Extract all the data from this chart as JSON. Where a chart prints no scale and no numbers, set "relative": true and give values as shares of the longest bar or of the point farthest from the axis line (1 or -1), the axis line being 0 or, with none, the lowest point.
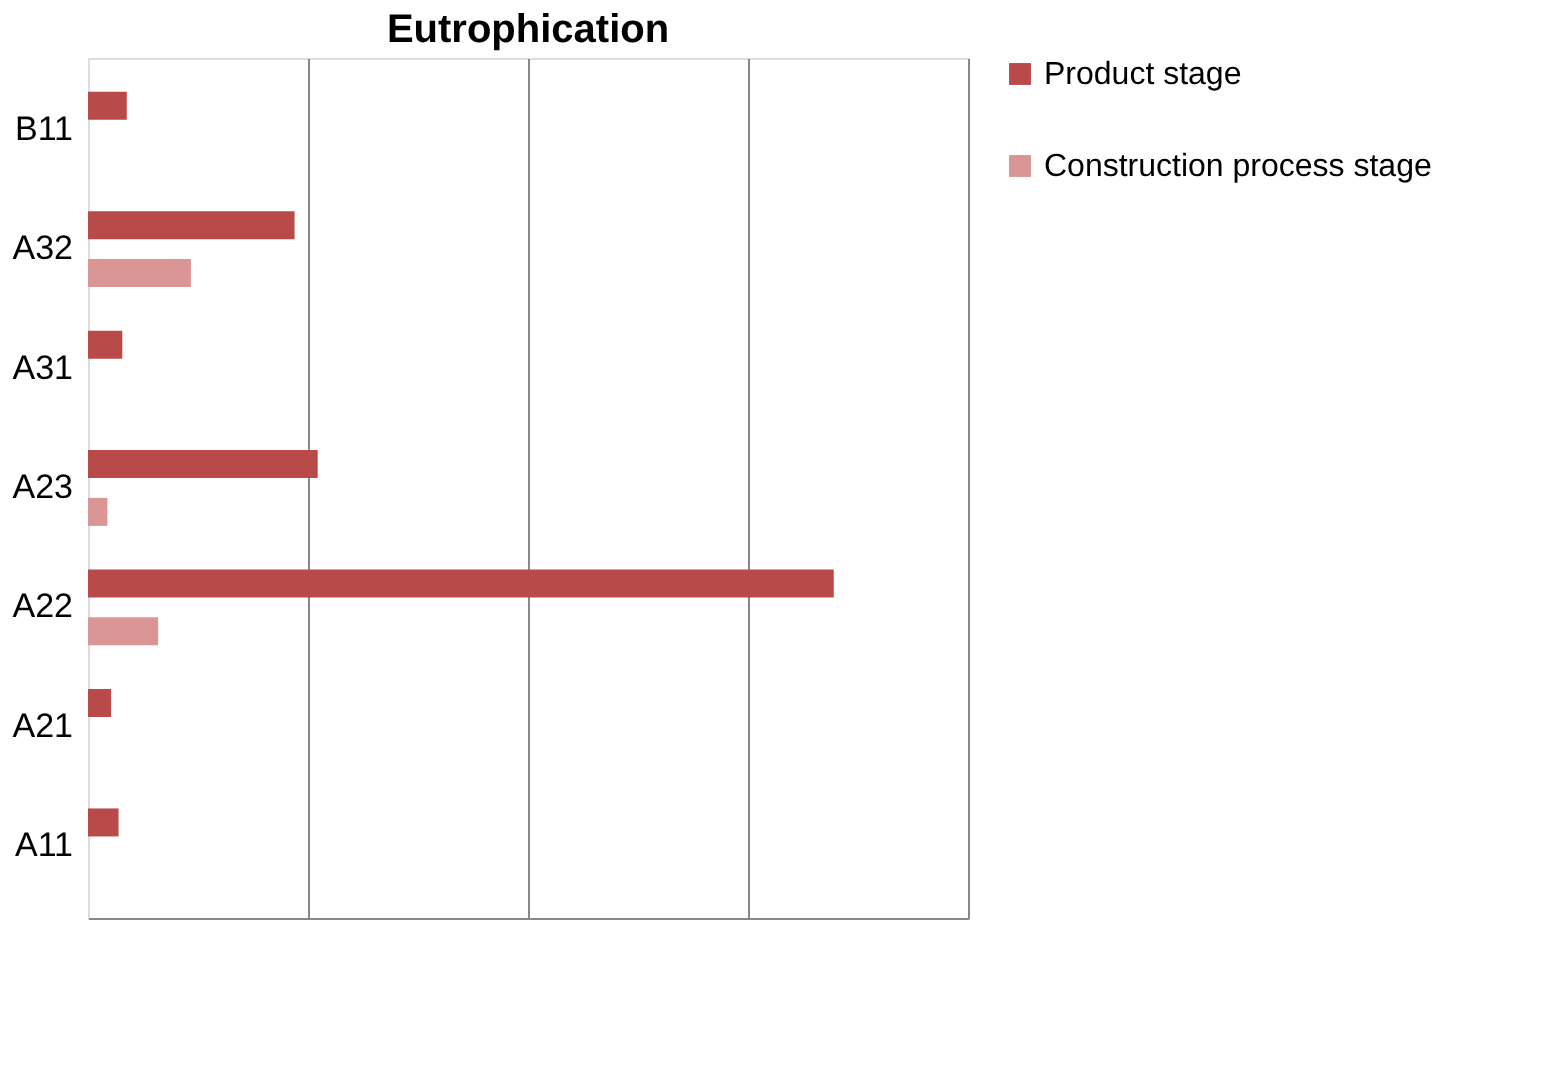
{
  "chart_data": {
    "type": "bar",
    "orientation": "horizontal",
    "relative": true,
    "title": "Eutrophication",
    "categories": [
      "B11",
      "A32",
      "A31",
      "A23",
      "A22",
      "A21",
      "A11"
    ],
    "series": [
      {
        "name": "Product stage",
        "color": "#b84b4a",
        "values": [
          0.052,
          0.277,
          0.046,
          0.308,
          1,
          0.031,
          0.041
        ]
      },
      {
        "name": "Construction process stage",
        "color": "#d99694",
        "values": [
          0,
          0.138,
          0,
          0.026,
          0.094,
          0,
          0
        ]
      }
    ],
    "grid": "x",
    "legend": "right"
  }
}
